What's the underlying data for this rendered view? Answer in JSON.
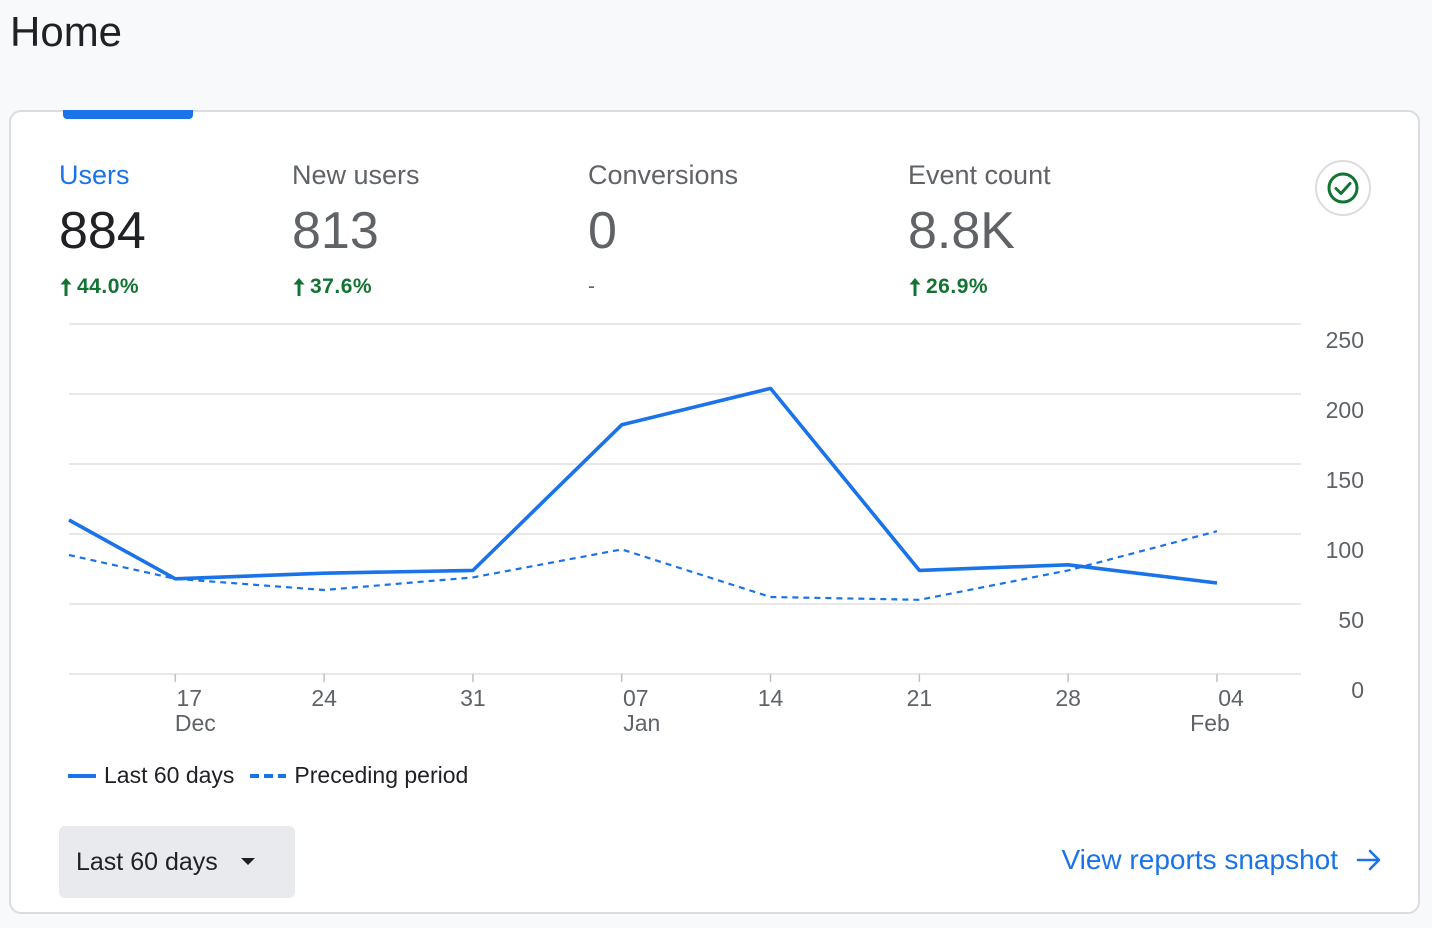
{
  "page": {
    "title": "Home"
  },
  "metrics": [
    {
      "label": "Users",
      "value": "884",
      "change": "44.0%",
      "direction": "up"
    },
    {
      "label": "New users",
      "value": "813",
      "change": "37.6%",
      "direction": "up"
    },
    {
      "label": "Conversions",
      "value": "0",
      "change": "-",
      "direction": "none"
    },
    {
      "label": "Event count",
      "value": "8.8K",
      "change": "26.9%",
      "direction": "up"
    }
  ],
  "chart_data": {
    "type": "line",
    "title": "",
    "xlabel": "",
    "ylabel": "",
    "ylim": [
      0,
      250
    ],
    "y_ticks": [
      "0",
      "50",
      "100",
      "150",
      "200",
      "250"
    ],
    "x_ticks": [
      {
        "day": "17",
        "month": "Dec"
      },
      {
        "day": "24",
        "month": ""
      },
      {
        "day": "31",
        "month": ""
      },
      {
        "day": "07",
        "month": "Jan"
      },
      {
        "day": "14",
        "month": ""
      },
      {
        "day": "21",
        "month": ""
      },
      {
        "day": "28",
        "month": ""
      },
      {
        "day": "04",
        "month": "Feb"
      }
    ],
    "series": [
      {
        "name": "Last 60 days",
        "style": "solid",
        "x_days": [
          -5,
          0,
          7,
          14,
          21,
          28,
          35,
          42,
          49
        ],
        "values": [
          110,
          68,
          72,
          74,
          178,
          204,
          74,
          78,
          65
        ]
      },
      {
        "name": "Preceding period",
        "style": "dashed",
        "x_days": [
          -5,
          0,
          7,
          14,
          21,
          28,
          35,
          42,
          49
        ],
        "values": [
          85,
          68,
          60,
          69,
          89,
          55,
          53,
          74,
          102
        ]
      }
    ],
    "legend": [
      "Last 60 days",
      "Preceding period"
    ],
    "grid": true
  },
  "footer": {
    "date_range_label": "Last 60 days",
    "view_link_label": "View reports snapshot"
  },
  "colors": {
    "accent": "#1a73e8",
    "positive": "#137333",
    "grid": "#e0e0e0"
  }
}
